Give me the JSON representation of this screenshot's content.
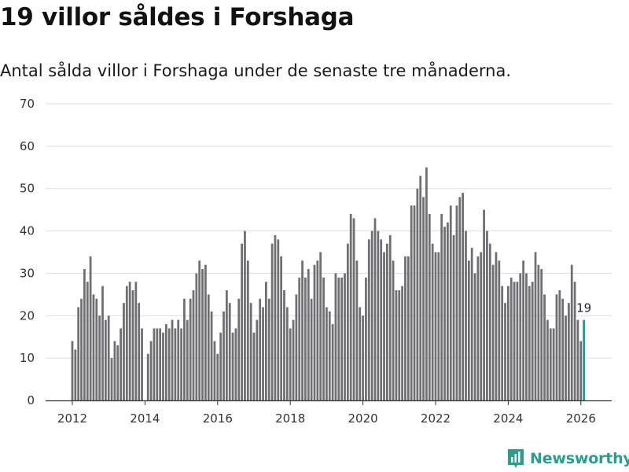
{
  "header": {
    "title": "19 villor såldes i Forshaga",
    "subtitle": "Antal sålda villor i Forshaga under de senaste tre månaderna."
  },
  "brand": {
    "name": "Newsworthy",
    "color": "#2a9d8f",
    "icon": "newsworthy-logo-icon"
  },
  "colors": {
    "bar": "#6f6e73",
    "highlight": "#17a094",
    "grid": "#dddddd",
    "axis": "#333333"
  },
  "chart_data": {
    "type": "bar",
    "title": "19 villor såldes i Forshaga",
    "xlabel": "",
    "ylabel": "",
    "ylim": [
      0,
      70
    ],
    "yticks": [
      0,
      10,
      20,
      30,
      40,
      50,
      60,
      70
    ],
    "xticks": [
      "2012",
      "2014",
      "2016",
      "2018",
      "2020",
      "2022",
      "2024",
      "2026"
    ],
    "x_start": 2012.0,
    "x_step_years": 0.08333,
    "grid": true,
    "highlight_last": true,
    "last_label": "19",
    "values": [
      14,
      12,
      22,
      24,
      31,
      28,
      34,
      25,
      24,
      20,
      27,
      19,
      20,
      10,
      14,
      13,
      17,
      23,
      27,
      28,
      26,
      28,
      23,
      17,
      0,
      11,
      14,
      17,
      17,
      17,
      16,
      18,
      17,
      19,
      17,
      19,
      17,
      24,
      19,
      24,
      26,
      30,
      33,
      31,
      32,
      25,
      21,
      14,
      11,
      16,
      21,
      26,
      23,
      16,
      17,
      24,
      37,
      40,
      33,
      23,
      16,
      19,
      24,
      22,
      28,
      24,
      37,
      39,
      38,
      34,
      26,
      22,
      17,
      19,
      25,
      29,
      33,
      29,
      31,
      24,
      32,
      33,
      35,
      29,
      22,
      21,
      18,
      30,
      29,
      29,
      30,
      37,
      44,
      43,
      33,
      22,
      20,
      29,
      38,
      40,
      43,
      40,
      38,
      35,
      37,
      39,
      33,
      26,
      26,
      27,
      34,
      34,
      46,
      46,
      50,
      53,
      48,
      55,
      44,
      37,
      35,
      35,
      44,
      41,
      42,
      46,
      39,
      46,
      48,
      49,
      40,
      33,
      36,
      30,
      34,
      35,
      45,
      40,
      37,
      32,
      35,
      33,
      27,
      23,
      27,
      29,
      28,
      28,
      30,
      33,
      30,
      27,
      28,
      35,
      32,
      31,
      25,
      19,
      17,
      17,
      25,
      26,
      24,
      20,
      23,
      32,
      28,
      19,
      14,
      19
    ]
  }
}
